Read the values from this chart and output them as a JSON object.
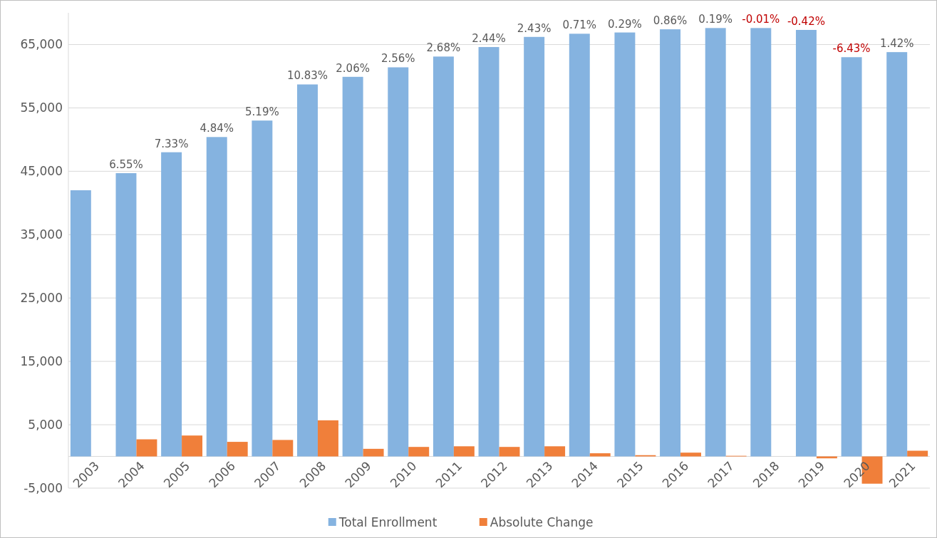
{
  "chart_data": {
    "type": "bar",
    "categories": [
      "2003",
      "2004",
      "2005",
      "2006",
      "2007",
      "2008",
      "2009",
      "2010",
      "2011",
      "2012",
      "2013",
      "2014",
      "2015",
      "2016",
      "2017",
      "2018",
      "2019",
      "2020",
      "2021"
    ],
    "series": [
      {
        "name": "Total Enrollment",
        "color": "#85b3e0",
        "values": [
          42000,
          44700,
          48000,
          50400,
          53000,
          58700,
          59900,
          61400,
          63100,
          64600,
          66200,
          66700,
          66900,
          67400,
          67600,
          67600,
          67300,
          63000,
          63800
        ]
      },
      {
        "name": "Absolute Change",
        "color": "#f07f3a",
        "values": [
          null,
          2700,
          3300,
          2300,
          2600,
          5700,
          1200,
          1500,
          1600,
          1500,
          1600,
          500,
          200,
          600,
          100,
          0,
          -300,
          -4300,
          900
        ]
      }
    ],
    "annotations": [
      {
        "text": "6.55%",
        "x": "2004",
        "y": 44700
      },
      {
        "text": "7.33%",
        "x": "2005",
        "y": 48000
      },
      {
        "text": "4.84%",
        "x": "2006",
        "y": 50400
      },
      {
        "text": "5.19%",
        "x": "2007",
        "y": 53000
      },
      {
        "text": "10.83%",
        "x": "2008",
        "y": 58700
      },
      {
        "text": "2.06%",
        "x": "2009",
        "y": 59900
      },
      {
        "text": "2.56%",
        "x": "2010",
        "y": 61400
      },
      {
        "text": "2.68%",
        "x": "2011",
        "y": 63100
      },
      {
        "text": "2.44%",
        "x": "2012",
        "y": 64600
      },
      {
        "text": "2.43%",
        "x": "2013",
        "y": 66200
      },
      {
        "text": "0.71%",
        "x": "2014",
        "y": 66700
      },
      {
        "text": "0.29%",
        "x": "2015",
        "y": 66900
      },
      {
        "text": "0.86%",
        "x": "2016",
        "y": 67400
      },
      {
        "text": "0.19%",
        "x": "2017",
        "y": 67600
      },
      {
        "text": "-0.01%",
        "x": "2018",
        "y": 67600
      },
      {
        "text": "-0.42%",
        "x": "2019",
        "y": 67300
      },
      {
        "text": "-6.43%",
        "x": "2020",
        "y": 63000
      },
      {
        "text": "1.42%",
        "x": "2021",
        "y": 63800
      }
    ],
    "ylim": [
      -5000,
      70000
    ],
    "yticks": [
      {
        "value": -5000,
        "label": "-5,000"
      },
      {
        "value": 5000,
        "label": "5,000"
      },
      {
        "value": 15000,
        "label": "15,000"
      },
      {
        "value": 25000,
        "label": "25,000"
      },
      {
        "value": 35000,
        "label": "35,000"
      },
      {
        "value": 45000,
        "label": "45,000"
      },
      {
        "value": 55000,
        "label": "55,000"
      },
      {
        "value": 65000,
        "label": "65,000"
      }
    ],
    "grid": "y",
    "legend": "bottom"
  }
}
